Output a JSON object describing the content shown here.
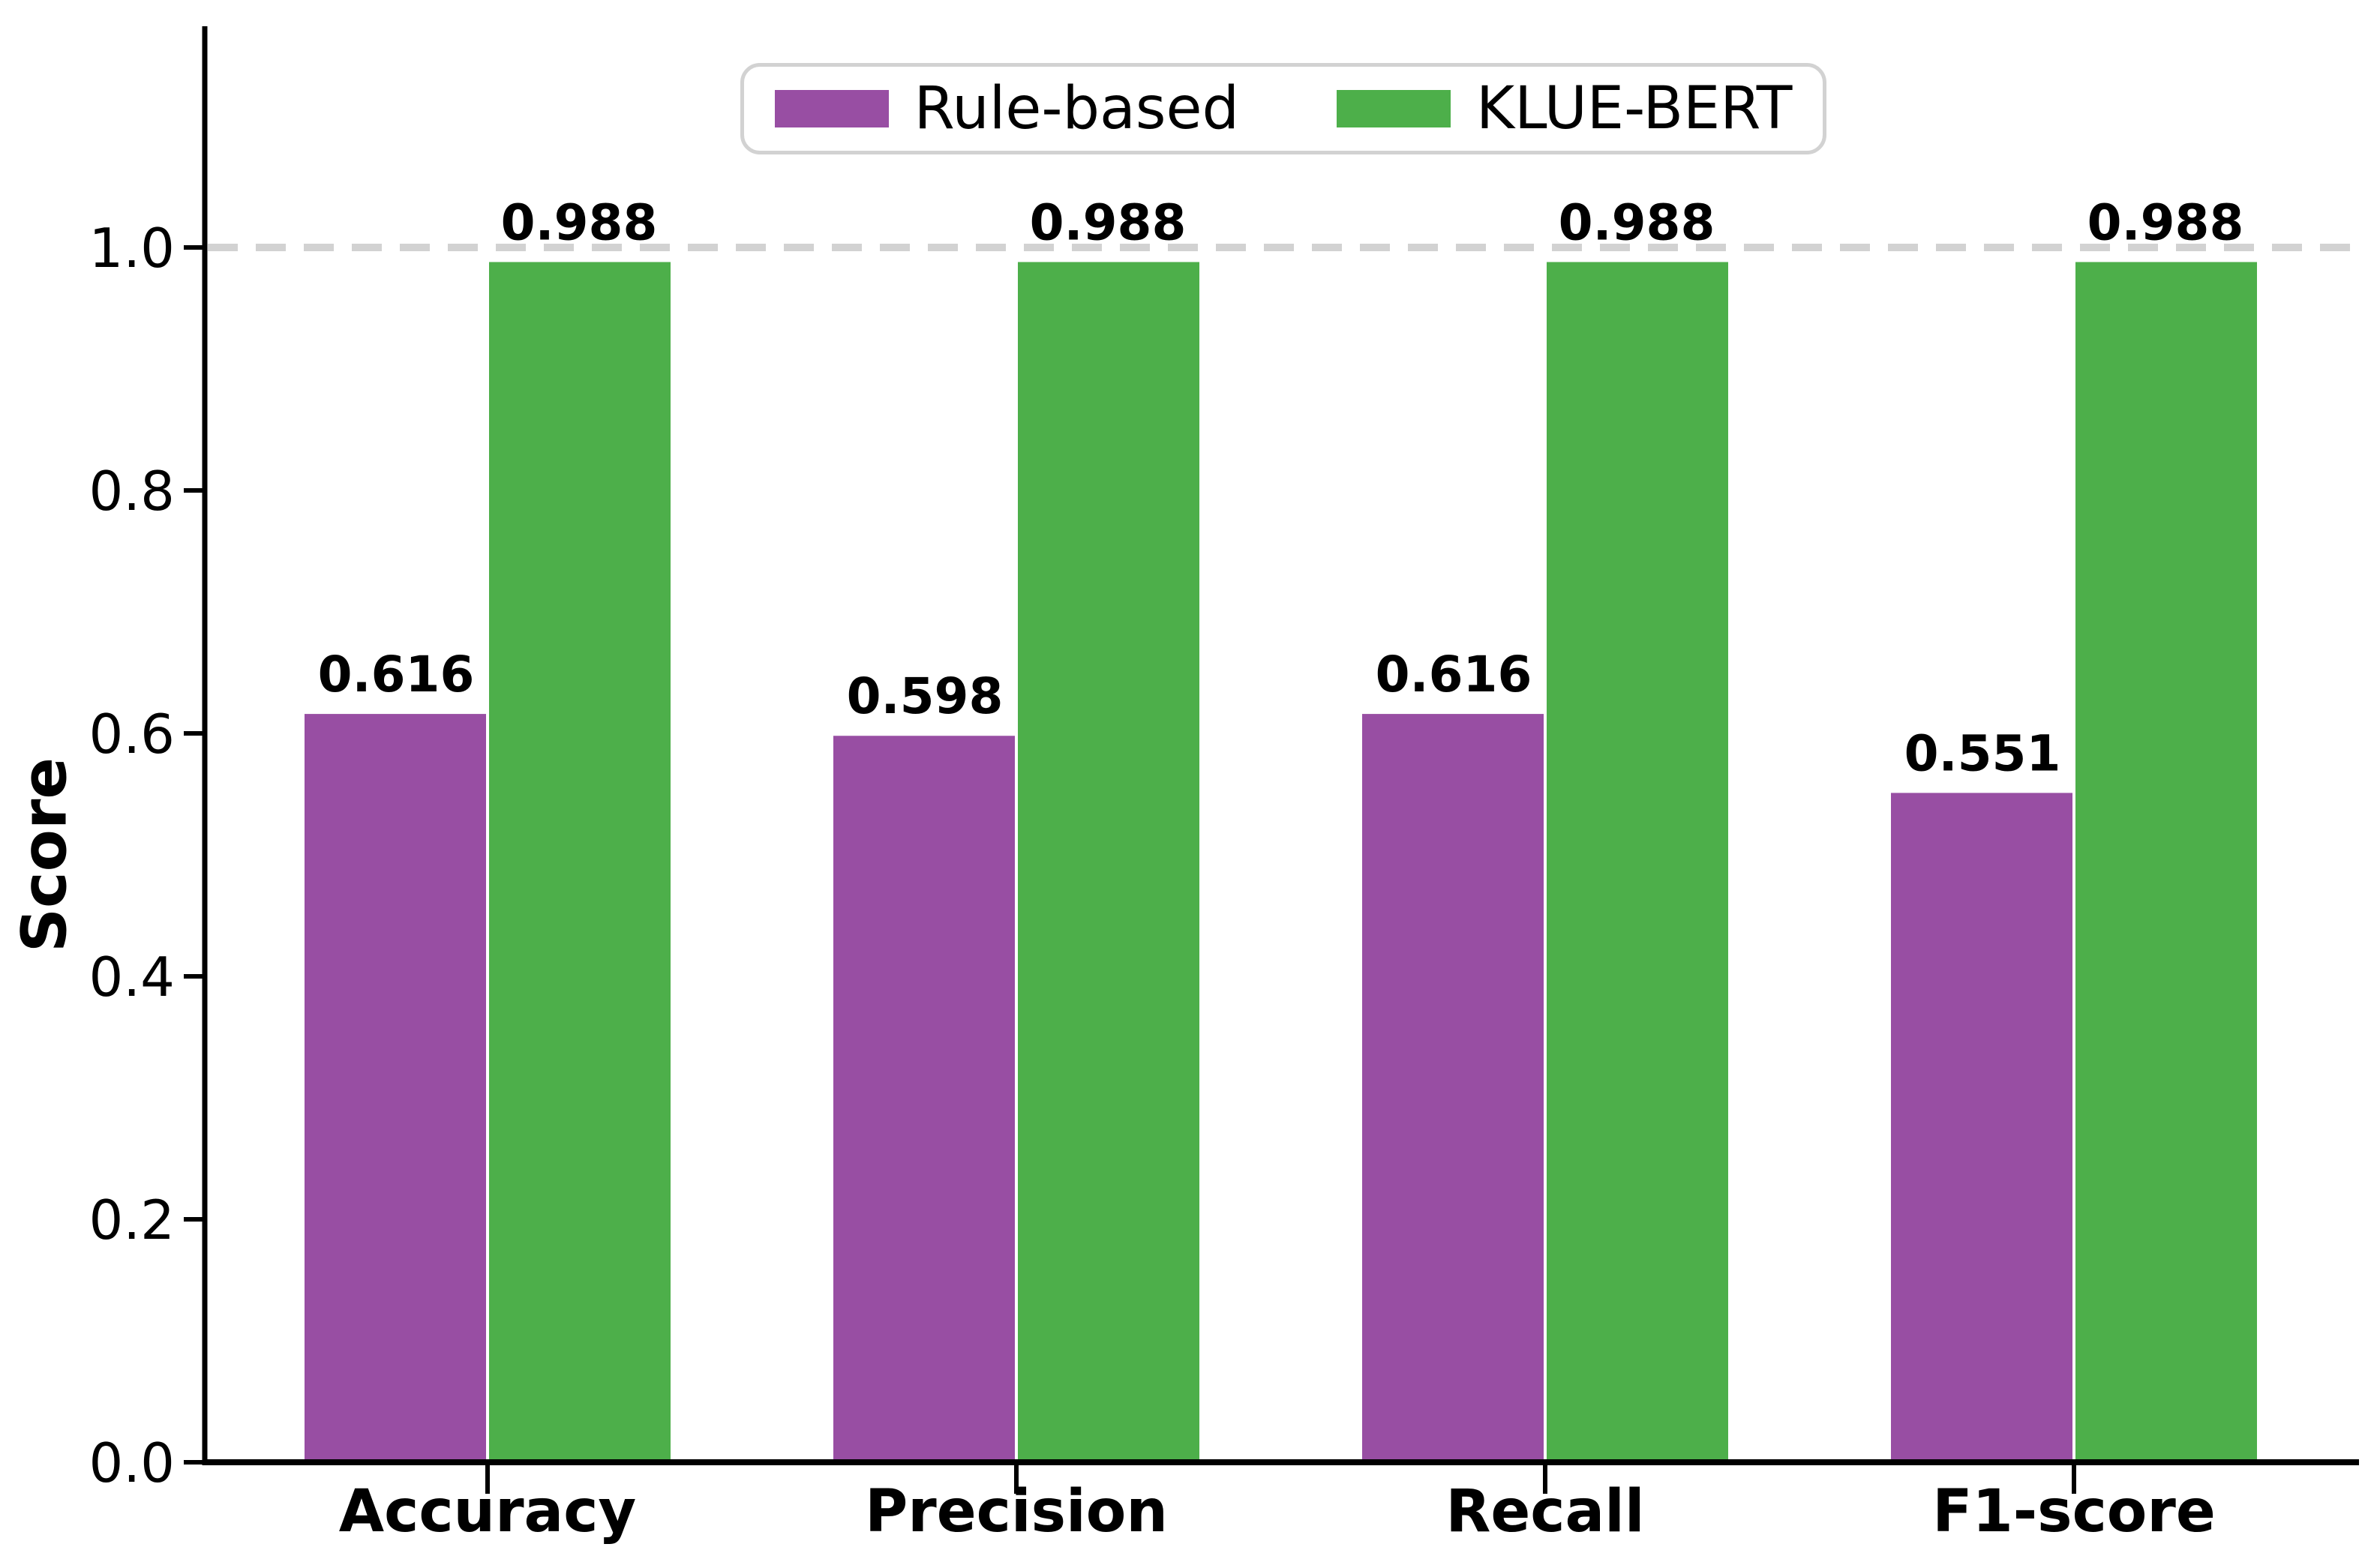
{
  "chart_data": {
    "type": "bar",
    "title": "",
    "xlabel": "",
    "ylabel": "Score",
    "categories": [
      "Accuracy",
      "Precision",
      "Recall",
      "F1-score"
    ],
    "series": [
      {
        "name": "Rule-based",
        "color": "#984ea3",
        "values": [
          0.616,
          0.598,
          0.616,
          0.551
        ]
      },
      {
        "name": "KLUE-BERT",
        "color": "#4daf4a",
        "values": [
          0.988,
          0.988,
          0.988,
          0.988
        ]
      }
    ],
    "value_label_decimals": 3,
    "yticks": [
      0.0,
      0.2,
      0.4,
      0.6,
      0.8,
      1.0
    ],
    "ytick_decimals": 1,
    "ylim": [
      0,
      1.17
    ],
    "grid": false,
    "reference_line": {
      "y": 1.0,
      "style": "dashed",
      "color": "#d2d2d2"
    },
    "axis_color": "#000000",
    "background_color": "#ffffff",
    "legend": {
      "position": "top-center",
      "orientation": "horizontal"
    }
  }
}
